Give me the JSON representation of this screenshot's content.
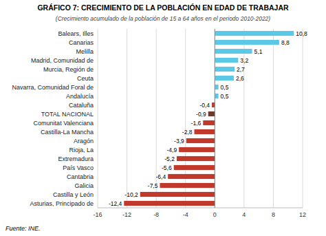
{
  "chart_data": {
    "type": "bar",
    "orientation": "horizontal",
    "title": "GRÁFICO 7: CRECIMIENTO DE LA POBLACIÓN EN EDAD DE TRABAJAR",
    "subtitle": "(Crecimiento acumulado de la población de 15 a 64 años en el periodo 2010-2022)",
    "footer": "Fuente: INE.",
    "categories": [
      "Balears, Illes",
      "Canarias",
      "Melilla",
      "Madrid, Comunidad de",
      "Murcia, Región de",
      "Ceuta",
      "Navarra, Comunidad Foral de",
      "Andalucía",
      "Cataluña",
      "TOTAL NACIONAL",
      "Comunitat Valenciana",
      "Castilla-La Mancha",
      "Aragón",
      "Rioja, La",
      "Extremadura",
      "País Vasco",
      "Cantabria",
      "Galicia",
      "Castilla y León",
      "Asturias, Principado de"
    ],
    "values": [
      10.8,
      8.8,
      5.1,
      3.2,
      2.7,
      2.6,
      0.5,
      0.5,
      -0.4,
      -0.9,
      -1.6,
      -2.8,
      -3.9,
      -4.9,
      -5.2,
      -5.6,
      -6.4,
      -7.5,
      -10.2,
      -12.4
    ],
    "value_labels": [
      "10,8",
      "8,8",
      "5,1",
      "3,2",
      "2,7",
      "2,6",
      "0,5",
      "0,5",
      "-0,4",
      "-0,9",
      "-1,6",
      "-2,8",
      "-3,9",
      "-4,9",
      "-5,2",
      "-5,6",
      "-6,4",
      "-7,5",
      "-10,2",
      "-12,4"
    ],
    "data_labels": true,
    "colors": [
      "#5bc8e8",
      "#5bc8e8",
      "#5bc8e8",
      "#5bc8e8",
      "#5bc8e8",
      "#5bc8e8",
      "#5bc8e8",
      "#5bc8e8",
      "#c0392b",
      "#6b3a2a",
      "#c0392b",
      "#c0392b",
      "#c0392b",
      "#c0392b",
      "#c0392b",
      "#c0392b",
      "#c0392b",
      "#c0392b",
      "#c0392b",
      "#c0392b"
    ],
    "xlim": [
      -16,
      12
    ],
    "xticks": [
      -16,
      -12,
      -8,
      -4,
      0,
      4,
      8,
      12
    ],
    "grid": true
  }
}
